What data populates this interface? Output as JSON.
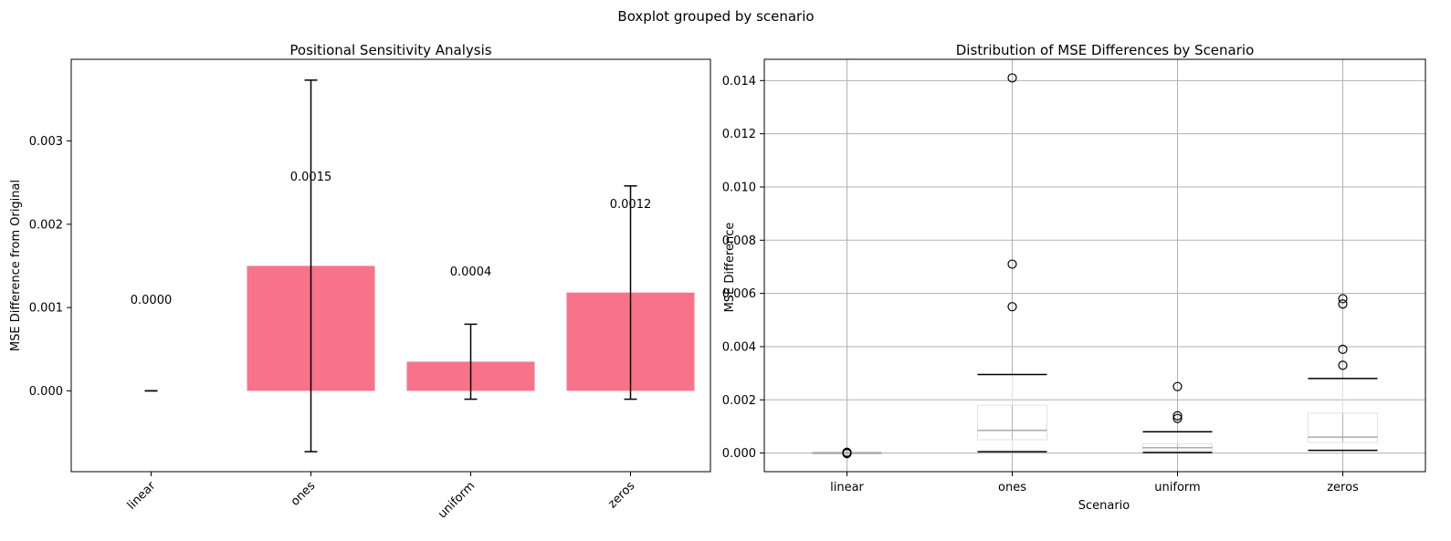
{
  "suptitle": "Boxplot grouped by scenario",
  "colors": {
    "bar": "#f7738a",
    "grid": "#b0b0b0",
    "median": "#a9a9a9",
    "box": "#e0e0e0"
  },
  "chart_data": [
    {
      "type": "bar",
      "title": "Positional Sensitivity Analysis",
      "xlabel": "",
      "ylabel": "MSE Difference from Original",
      "categories": [
        "linear",
        "ones",
        "uniform",
        "zeros"
      ],
      "values": [
        0.0,
        0.0015,
        0.00035,
        0.00118
      ],
      "errors": [
        0.0,
        0.00223,
        0.00045,
        0.00128
      ],
      "value_labels": [
        "0.0000",
        "0.0015",
        "0.0004",
        "0.0012"
      ],
      "label_y": [
        0.0011,
        0.00258,
        0.00144,
        0.00225
      ],
      "ylim": [
        -0.00097,
        0.00398
      ],
      "yticks": [
        0.0,
        0.001,
        0.002,
        0.003
      ],
      "ytick_labels": [
        "0.000",
        "0.001",
        "0.002",
        "0.003"
      ],
      "grid": false,
      "xtick_rotation": 45
    },
    {
      "type": "box",
      "title": "Distribution of MSE Differences by Scenario",
      "xlabel": "Scenario",
      "ylabel": "MSE Difference",
      "categories": [
        "linear",
        "ones",
        "uniform",
        "zeros"
      ],
      "series": [
        {
          "name": "linear",
          "whisker_low": 0.0,
          "q1": 0.0,
          "median": 0.0,
          "q3": 0.0,
          "whisker_high": 0.0,
          "outliers": [
            3e-05,
            0.0,
            -2e-05
          ]
        },
        {
          "name": "ones",
          "whisker_low": 5e-05,
          "q1": 0.0005,
          "median": 0.00085,
          "q3": 0.0018,
          "whisker_high": 0.00295,
          "outliers": [
            0.0141,
            0.0071,
            0.0055
          ]
        },
        {
          "name": "uniform",
          "whisker_low": 2e-05,
          "q1": 0.0001,
          "median": 0.0002,
          "q3": 0.00035,
          "whisker_high": 0.0008,
          "outliers": [
            0.0025,
            0.0014,
            0.0013
          ]
        },
        {
          "name": "zeros",
          "whisker_low": 0.0001,
          "q1": 0.0004,
          "median": 0.0006,
          "q3": 0.0015,
          "whisker_high": 0.0028,
          "outliers": [
            0.0058,
            0.0056,
            0.0039,
            0.0033
          ]
        }
      ],
      "ylim": [
        -0.0007,
        0.0148
      ],
      "yticks": [
        0.0,
        0.002,
        0.004,
        0.006,
        0.008,
        0.01,
        0.012,
        0.014
      ],
      "ytick_labels": [
        "0.000",
        "0.002",
        "0.004",
        "0.006",
        "0.008",
        "0.010",
        "0.012",
        "0.014"
      ],
      "grid": true
    }
  ]
}
